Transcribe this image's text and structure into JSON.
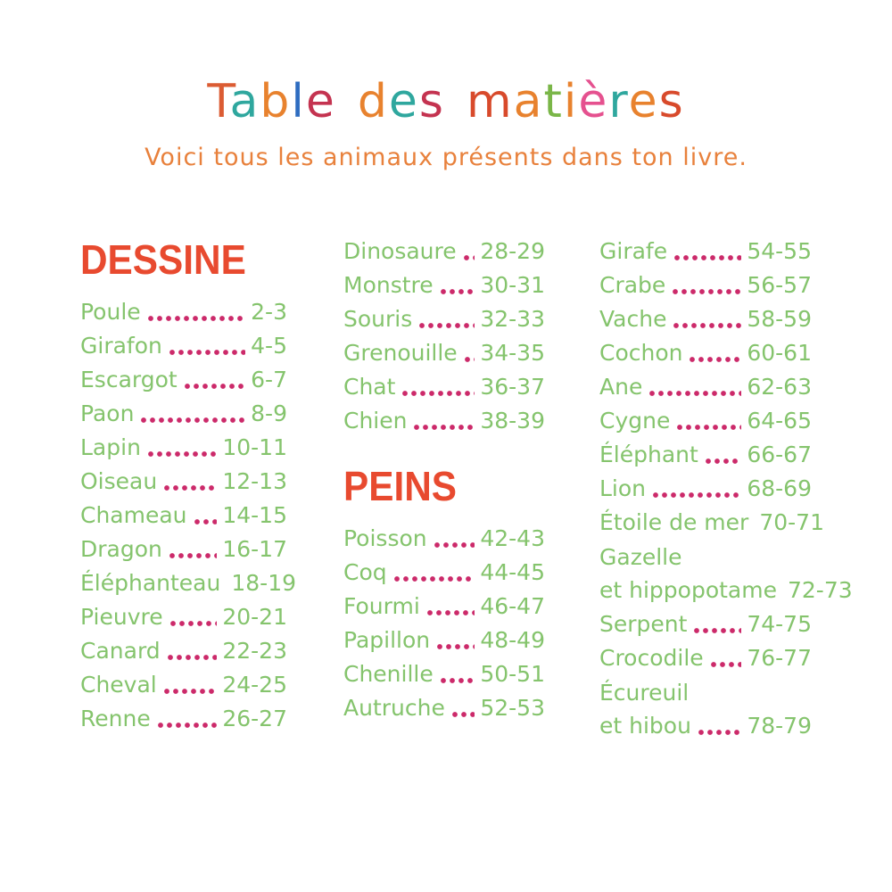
{
  "header": {
    "title": "Table des matières",
    "title_letters": [
      {
        "ch": "T",
        "color": "#db5c33"
      },
      {
        "ch": "a",
        "color": "#2fa79e"
      },
      {
        "ch": "b",
        "color": "#e8822e"
      },
      {
        "ch": "l",
        "color": "#2e6cc0"
      },
      {
        "ch": "e",
        "color": "#c43350"
      },
      {
        "ch": " ",
        "color": ""
      },
      {
        "ch": "d",
        "color": "#e8822e"
      },
      {
        "ch": "e",
        "color": "#2fa79e"
      },
      {
        "ch": "s",
        "color": "#c43350"
      },
      {
        "ch": " ",
        "color": ""
      },
      {
        "ch": "m",
        "color": "#d84a2b"
      },
      {
        "ch": "a",
        "color": "#e8822e"
      },
      {
        "ch": "t",
        "color": "#7ab648"
      },
      {
        "ch": "i",
        "color": "#e8822e"
      },
      {
        "ch": "è",
        "color": "#e5518f"
      },
      {
        "ch": "r",
        "color": "#2fa79e"
      },
      {
        "ch": "e",
        "color": "#e8822e"
      },
      {
        "ch": "s",
        "color": "#d84a2b"
      }
    ],
    "subtitle": "Voici tous les animaux présents dans ton livre."
  },
  "colors": {
    "heading_red": "#e84a2f",
    "entry_green": "#85c46d",
    "dots_pink": "#cc2a6a",
    "subtitle_orange": "#e8813c",
    "background": "#ffffff"
  },
  "columns": [
    {
      "blocks": [
        {
          "type": "heading",
          "text": "DESSINE"
        },
        {
          "type": "entry",
          "label": "Poule",
          "pages": "2-3"
        },
        {
          "type": "entry",
          "label": "Girafon",
          "pages": "4-5"
        },
        {
          "type": "entry",
          "label": "Escargot",
          "pages": "6-7"
        },
        {
          "type": "entry",
          "label": "Paon",
          "pages": "8-9"
        },
        {
          "type": "entry",
          "label": "Lapin",
          "pages": "10-11"
        },
        {
          "type": "entry",
          "label": "Oiseau",
          "pages": "12-13"
        },
        {
          "type": "entry",
          "label": "Chameau",
          "pages": "14-15"
        },
        {
          "type": "entry",
          "label": "Dragon",
          "pages": "16-17"
        },
        {
          "type": "entry",
          "label": "Éléphanteau",
          "pages": "18-19"
        },
        {
          "type": "entry",
          "label": "Pieuvre",
          "pages": "20-21"
        },
        {
          "type": "entry",
          "label": "Canard",
          "pages": "22-23"
        },
        {
          "type": "entry",
          "label": "Cheval",
          "pages": "24-25"
        },
        {
          "type": "entry",
          "label": "Renne",
          "pages": "26-27"
        }
      ]
    },
    {
      "blocks": [
        {
          "type": "entry",
          "label": "Dinosaure",
          "pages": "28-29"
        },
        {
          "type": "entry",
          "label": "Monstre",
          "pages": "30-31"
        },
        {
          "type": "entry",
          "label": "Souris",
          "pages": "32-33"
        },
        {
          "type": "entry",
          "label": "Grenouille",
          "pages": "34-35"
        },
        {
          "type": "entry",
          "label": "Chat",
          "pages": "36-37"
        },
        {
          "type": "entry",
          "label": "Chien",
          "pages": "38-39"
        },
        {
          "type": "heading",
          "text": "PEINS"
        },
        {
          "type": "entry",
          "label": "Poisson",
          "pages": "42-43"
        },
        {
          "type": "entry",
          "label": "Coq",
          "pages": "44-45"
        },
        {
          "type": "entry",
          "label": "Fourmi",
          "pages": "46-47"
        },
        {
          "type": "entry",
          "label": "Papillon",
          "pages": "48-49"
        },
        {
          "type": "entry",
          "label": "Chenille",
          "pages": "50-51"
        },
        {
          "type": "entry",
          "label": "Autruche",
          "pages": "52-53"
        }
      ]
    },
    {
      "blocks": [
        {
          "type": "entry",
          "label": "Girafe",
          "pages": "54-55"
        },
        {
          "type": "entry",
          "label": "Crabe",
          "pages": "56-57"
        },
        {
          "type": "entry",
          "label": "Vache",
          "pages": "58-59"
        },
        {
          "type": "entry",
          "label": "Cochon",
          "pages": "60-61"
        },
        {
          "type": "entry",
          "label": "Ane",
          "pages": "62-63"
        },
        {
          "type": "entry",
          "label": "Cygne",
          "pages": "64-65"
        },
        {
          "type": "entry",
          "label": "Éléphant",
          "pages": "66-67"
        },
        {
          "type": "entry",
          "label": "Lion",
          "pages": "68-69"
        },
        {
          "type": "entry",
          "label": "Étoile de mer",
          "pages": "70-71"
        },
        {
          "type": "entry",
          "label": "Gazelle",
          "label2": "et hippopotame",
          "pages": "72-73"
        },
        {
          "type": "entry",
          "label": "Serpent",
          "pages": "74-75"
        },
        {
          "type": "entry",
          "label": "Crocodile",
          "pages": "76-77"
        },
        {
          "type": "entry",
          "label": "Écureuil",
          "label2": "et hibou",
          "pages": "78-79"
        }
      ]
    }
  ]
}
